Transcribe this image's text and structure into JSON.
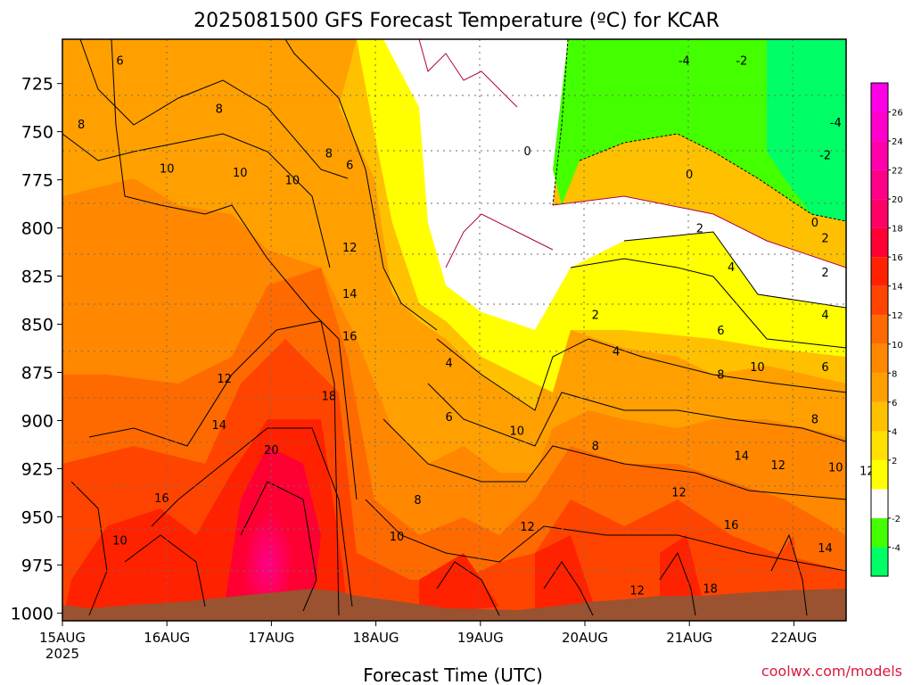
{
  "title": "2025081500 GFS Forecast Temperature (ºC) for KCAR",
  "xlabel": "Forecast Time (UTC)",
  "credit": "coolwx.com/models",
  "chart_data": {
    "type": "heatmap",
    "title": "2025081500 GFS Forecast Temperature (ºC) for KCAR",
    "xlabel": "Forecast Time (UTC)",
    "ylabel": "",
    "x_ticks": [
      "15AUG",
      "16AUG",
      "17AUG",
      "18AUG",
      "19AUG",
      "20AUG",
      "21AUG",
      "22AUG"
    ],
    "x_tick_year": "2025",
    "xlim_days": [
      15.0,
      22.5
    ],
    "y_ticks": [
      725,
      750,
      775,
      800,
      825,
      850,
      875,
      900,
      925,
      950,
      975,
      1000
    ],
    "ylim": [
      702,
      1004
    ],
    "grid": true,
    "colorbar": {
      "levels": [
        -6,
        -4,
        -2,
        0,
        2,
        4,
        6,
        8,
        10,
        12,
        14,
        16,
        18,
        20,
        22,
        24,
        26,
        28
      ],
      "tick_labels": [
        "-4",
        "-2",
        "2",
        "4",
        "6",
        "8",
        "10",
        "12",
        "14",
        "16",
        "18",
        "20",
        "22",
        "24",
        "26"
      ],
      "colors": [
        "#00ff66",
        "#44ff00",
        "#ffffff",
        "#ffff00",
        "#ffe000",
        "#ffc000",
        "#ffa000",
        "#ff8800",
        "#ff6a00",
        "#ff4400",
        "#ff2200",
        "#ff0033",
        "#ff0066",
        "#ff0088",
        "#ff00aa",
        "#ff00cc",
        "#ff00e6"
      ]
    },
    "contour_labels": [
      {
        "t": 15.55,
        "p": 713,
        "v": "6"
      },
      {
        "t": 15.18,
        "p": 746,
        "v": "8"
      },
      {
        "t": 16.5,
        "p": 738,
        "v": "8"
      },
      {
        "t": 16.0,
        "p": 769,
        "v": "10"
      },
      {
        "t": 16.7,
        "p": 771,
        "v": "10"
      },
      {
        "t": 17.2,
        "p": 775,
        "v": "10"
      },
      {
        "t": 17.55,
        "p": 761,
        "v": "8"
      },
      {
        "t": 17.75,
        "p": 767,
        "v": "6"
      },
      {
        "t": 17.75,
        "p": 810,
        "v": "12"
      },
      {
        "t": 17.75,
        "p": 834,
        "v": "14"
      },
      {
        "t": 17.75,
        "p": 856,
        "v": "16"
      },
      {
        "t": 16.55,
        "p": 878,
        "v": "12"
      },
      {
        "t": 16.5,
        "p": 902,
        "v": "14"
      },
      {
        "t": 17.55,
        "p": 887,
        "v": "18"
      },
      {
        "t": 17.0,
        "p": 915,
        "v": "20"
      },
      {
        "t": 15.95,
        "p": 940,
        "v": "16"
      },
      {
        "t": 15.55,
        "p": 962,
        "v": "10"
      },
      {
        "t": 18.7,
        "p": 870,
        "v": "4"
      },
      {
        "t": 18.7,
        "p": 898,
        "v": "6"
      },
      {
        "t": 18.4,
        "p": 941,
        "v": "8"
      },
      {
        "t": 18.2,
        "p": 960,
        "v": "10"
      },
      {
        "t": 19.35,
        "p": 905,
        "v": "10"
      },
      {
        "t": 19.45,
        "p": 955,
        "v": "12"
      },
      {
        "t": 19.45,
        "p": 760,
        "v": "0"
      },
      {
        "t": 20.1,
        "p": 845,
        "v": "2"
      },
      {
        "t": 20.3,
        "p": 864,
        "v": "4"
      },
      {
        "t": 20.1,
        "p": 913,
        "v": "8"
      },
      {
        "t": 21.0,
        "p": 772,
        "v": "0"
      },
      {
        "t": 21.1,
        "p": 800,
        "v": "2"
      },
      {
        "t": 21.4,
        "p": 820,
        "v": "4"
      },
      {
        "t": 21.3,
        "p": 853,
        "v": "6"
      },
      {
        "t": 21.3,
        "p": 876,
        "v": "8"
      },
      {
        "t": 21.65,
        "p": 872,
        "v": "10"
      },
      {
        "t": 21.5,
        "p": 918,
        "v": "14"
      },
      {
        "t": 21.85,
        "p": 923,
        "v": "12"
      },
      {
        "t": 20.9,
        "p": 937,
        "v": "12"
      },
      {
        "t": 21.4,
        "p": 954,
        "v": "16"
      },
      {
        "t": 21.2,
        "p": 987,
        "v": "18"
      },
      {
        "t": 20.5,
        "p": 988,
        "v": "12"
      },
      {
        "t": 22.3,
        "p": 805,
        "v": "2"
      },
      {
        "t": 22.2,
        "p": 797,
        "v": "0"
      },
      {
        "t": 22.3,
        "p": 823,
        "v": "2"
      },
      {
        "t": 22.3,
        "p": 845,
        "v": "4"
      },
      {
        "t": 22.3,
        "p": 872,
        "v": "6"
      },
      {
        "t": 22.2,
        "p": 899,
        "v": "8"
      },
      {
        "t": 22.4,
        "p": 924,
        "v": "10"
      },
      {
        "t": 22.7,
        "p": 926,
        "v": "12"
      },
      {
        "t": 22.3,
        "p": 966,
        "v": "14"
      },
      {
        "t": 20.95,
        "p": 713,
        "v": "-4"
      },
      {
        "t": 21.5,
        "p": 713,
        "v": "-2"
      },
      {
        "t": 22.4,
        "p": 745,
        "v": "-4"
      },
      {
        "t": 22.3,
        "p": 762,
        "v": "-2"
      }
    ]
  }
}
